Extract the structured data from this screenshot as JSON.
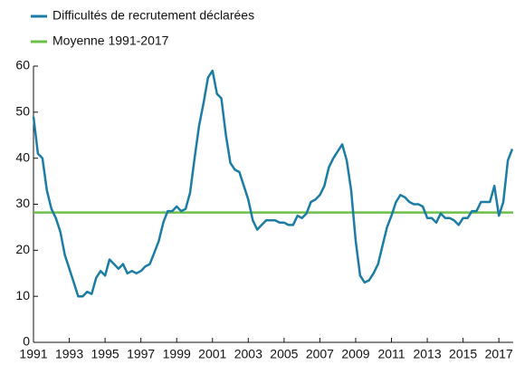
{
  "chart_data": {
    "type": "line",
    "x": [
      1991,
      1991.25,
      1991.5,
      1991.75,
      1992,
      1992.25,
      1992.5,
      1992.75,
      1993,
      1993.25,
      1993.5,
      1993.75,
      1994,
      1994.25,
      1994.5,
      1994.75,
      1995,
      1995.25,
      1995.5,
      1995.75,
      1996,
      1996.25,
      1996.5,
      1996.75,
      1997,
      1997.25,
      1997.5,
      1997.75,
      1998,
      1998.25,
      1998.5,
      1998.75,
      1999,
      1999.25,
      1999.5,
      1999.75,
      2000,
      2000.25,
      2000.5,
      2000.75,
      2001,
      2001.25,
      2001.5,
      2001.75,
      2002,
      2002.25,
      2002.5,
      2002.75,
      2003,
      2003.25,
      2003.5,
      2003.75,
      2004,
      2004.25,
      2004.5,
      2004.75,
      2005,
      2005.25,
      2005.5,
      2005.75,
      2006,
      2006.25,
      2006.5,
      2006.75,
      2007,
      2007.25,
      2007.5,
      2007.75,
      2008,
      2008.25,
      2008.5,
      2008.75,
      2009,
      2009.25,
      2009.5,
      2009.75,
      2010,
      2010.25,
      2010.5,
      2010.75,
      2011,
      2011.25,
      2011.5,
      2011.75,
      2012,
      2012.25,
      2012.5,
      2012.75,
      2013,
      2013.25,
      2013.5,
      2013.75,
      2014,
      2014.25,
      2014.5,
      2014.75,
      2015,
      2015.25,
      2015.5,
      2015.75,
      2016,
      2016.25,
      2016.5,
      2016.75,
      2017,
      2017.25,
      2017.5,
      2017.75
    ],
    "series": [
      {
        "name": "Difficultés de recrutement déclarées",
        "color": "#1b7ca6",
        "values": [
          49,
          41,
          40,
          33,
          29,
          27,
          24,
          19,
          16,
          13,
          10,
          10,
          11,
          10.5,
          14,
          15.5,
          14.5,
          18,
          17,
          16,
          17,
          15,
          15.5,
          15,
          15.5,
          16.5,
          17,
          19.5,
          22,
          26,
          28.5,
          28.5,
          29.5,
          28.5,
          29,
          32.5,
          40,
          47,
          52,
          57.5,
          59,
          54,
          53,
          45,
          39,
          37.5,
          37,
          34,
          31,
          26.5,
          24.5,
          25.5,
          26.5,
          26.5,
          26.5,
          26,
          26,
          25.5,
          25.5,
          27.5,
          27,
          28,
          30.5,
          31,
          32,
          34,
          38,
          40,
          41.5,
          43,
          39.5,
          33,
          22,
          14.5,
          13,
          13.5,
          15,
          17,
          21,
          25,
          27.5,
          30.5,
          32,
          31.5,
          30.5,
          30,
          30,
          29.5,
          27,
          27,
          26,
          28,
          27,
          27,
          26.5,
          25.5,
          27,
          27,
          28.5,
          28.5,
          30.5,
          30.5,
          30.5,
          34,
          27.5,
          30.5,
          39.5,
          42
        ]
      }
    ],
    "mean": {
      "name": "Moyenne 1991-2017",
      "color": "#6cc04a",
      "value": 28.2
    },
    "xlim": [
      1991,
      2017.8
    ],
    "ylim": [
      0,
      60
    ],
    "xticks": [
      1991,
      1993,
      1995,
      1997,
      1999,
      2001,
      2003,
      2005,
      2007,
      2009,
      2011,
      2013,
      2015,
      2017
    ],
    "yticks": [
      0,
      10,
      20,
      30,
      40,
      50,
      60
    ]
  }
}
